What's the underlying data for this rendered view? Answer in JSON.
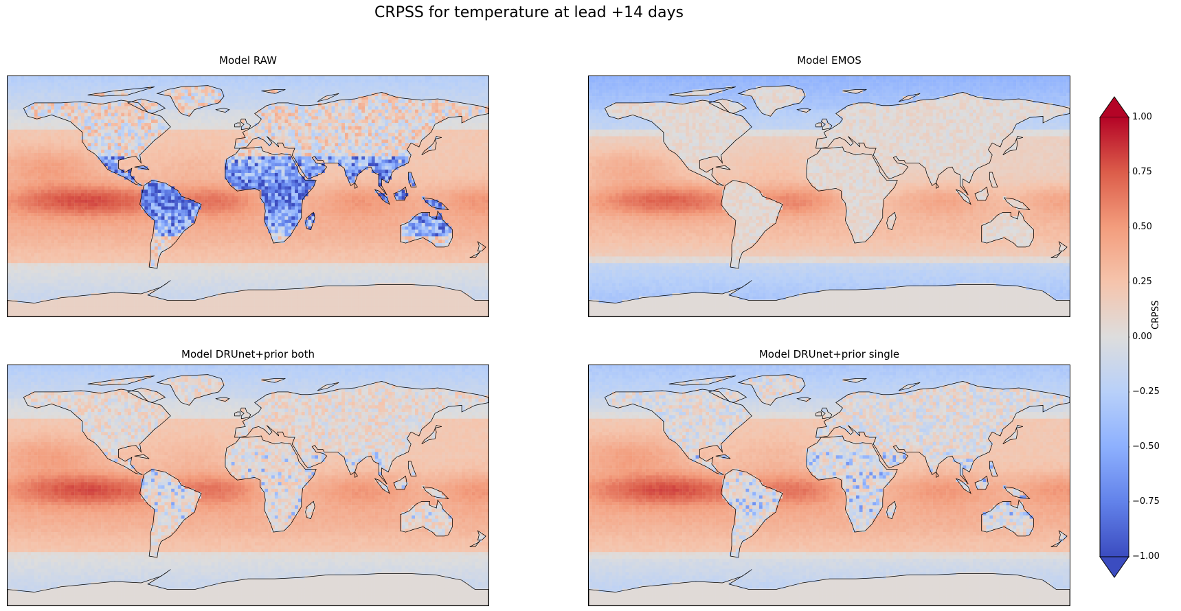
{
  "figure": {
    "title": "CRPSS for temperature at lead +14 days"
  },
  "panels": [
    {
      "title": "Model RAW",
      "land_skill": -0.65,
      "land_noise": 0.35
    },
    {
      "title": "Model EMOS",
      "land_skill": 0.05,
      "land_noise": 0.1
    },
    {
      "title": "Model DRUnet+prior both",
      "land_skill": 0.05,
      "land_noise": 0.2
    },
    {
      "title": "Model DRUnet+prior single",
      "land_skill": 0.0,
      "land_noise": 0.22
    }
  ],
  "colorbar": {
    "label": "CRPSS",
    "colormap": "coolwarm",
    "min": -1.0,
    "max": 1.0,
    "extend": "both",
    "ticks": [
      "1.00",
      "0.75",
      "0.50",
      "0.25",
      "0.00",
      "−0.25",
      "−0.50",
      "−0.75",
      "−1.00"
    ],
    "low_color": "#3b4cc0",
    "mid_color": "#dddddd",
    "high_color": "#b40426"
  }
}
